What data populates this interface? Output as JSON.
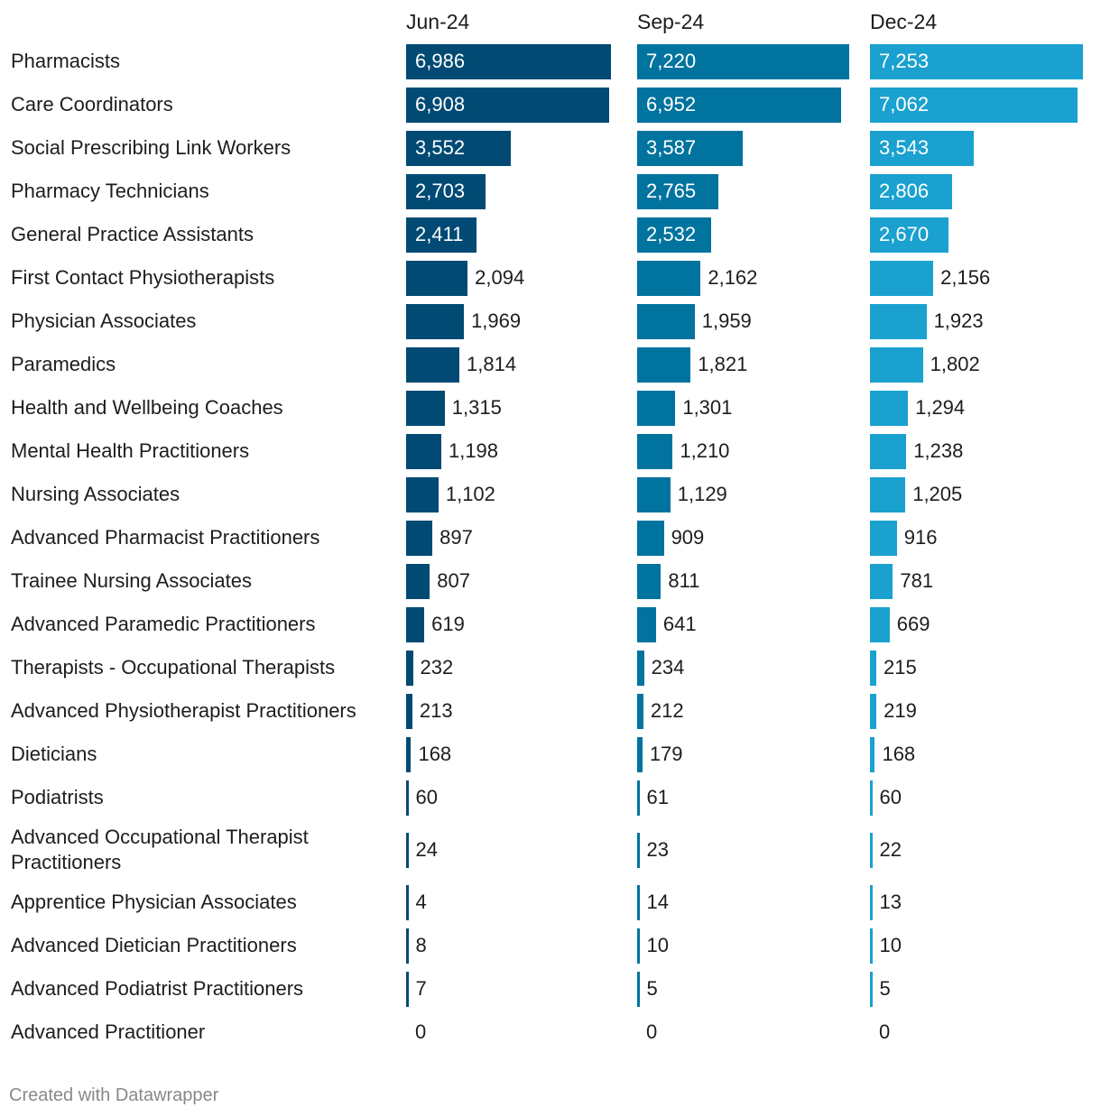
{
  "chart_data": {
    "type": "bar",
    "columns": [
      "Jun-24",
      "Sep-24",
      "Dec-24"
    ],
    "colors": [
      "#004a74",
      "#00739e",
      "#1aa1cf"
    ],
    "categories": [
      "Pharmacists",
      "Care Coordinators",
      "Social Prescribing Link Workers",
      "Pharmacy Technicians",
      "General Practice Assistants",
      "First Contact Physiotherapists",
      "Physician Associates",
      "Paramedics",
      "Health and Wellbeing Coaches",
      "Mental Health Practitioners",
      "Nursing Associates",
      "Advanced Pharmacist Practitioners",
      "Trainee Nursing Associates",
      "Advanced Paramedic Practitioners",
      "Therapists - Occupational Therapists",
      "Advanced Physiotherapist Practitioners",
      "Dieticians",
      "Podiatrists",
      "Advanced Occupational Therapist Practitioners",
      "Apprentice Physician Associates",
      "Advanced Dietician Practitioners",
      "Advanced Podiatrist Practitioners",
      "Advanced Practitioner"
    ],
    "series": [
      {
        "name": "Jun-24",
        "values": [
          6986,
          6908,
          3552,
          2703,
          2411,
          2094,
          1969,
          1814,
          1315,
          1198,
          1102,
          897,
          807,
          619,
          232,
          213,
          168,
          60,
          24,
          4,
          8,
          7,
          0
        ]
      },
      {
        "name": "Sep-24",
        "values": [
          7220,
          6952,
          3587,
          2765,
          2532,
          2162,
          1959,
          1821,
          1301,
          1210,
          1129,
          909,
          811,
          641,
          234,
          212,
          179,
          61,
          23,
          14,
          10,
          5,
          0
        ]
      },
      {
        "name": "Dec-24",
        "values": [
          7253,
          7062,
          3543,
          2806,
          2670,
          2156,
          1923,
          1802,
          1294,
          1238,
          1205,
          916,
          781,
          669,
          215,
          219,
          168,
          60,
          22,
          13,
          10,
          5,
          0
        ]
      }
    ],
    "xlim": [
      0,
      7253
    ],
    "value_labels_inside_above": 2400
  },
  "footer": "Created with Datawrapper"
}
